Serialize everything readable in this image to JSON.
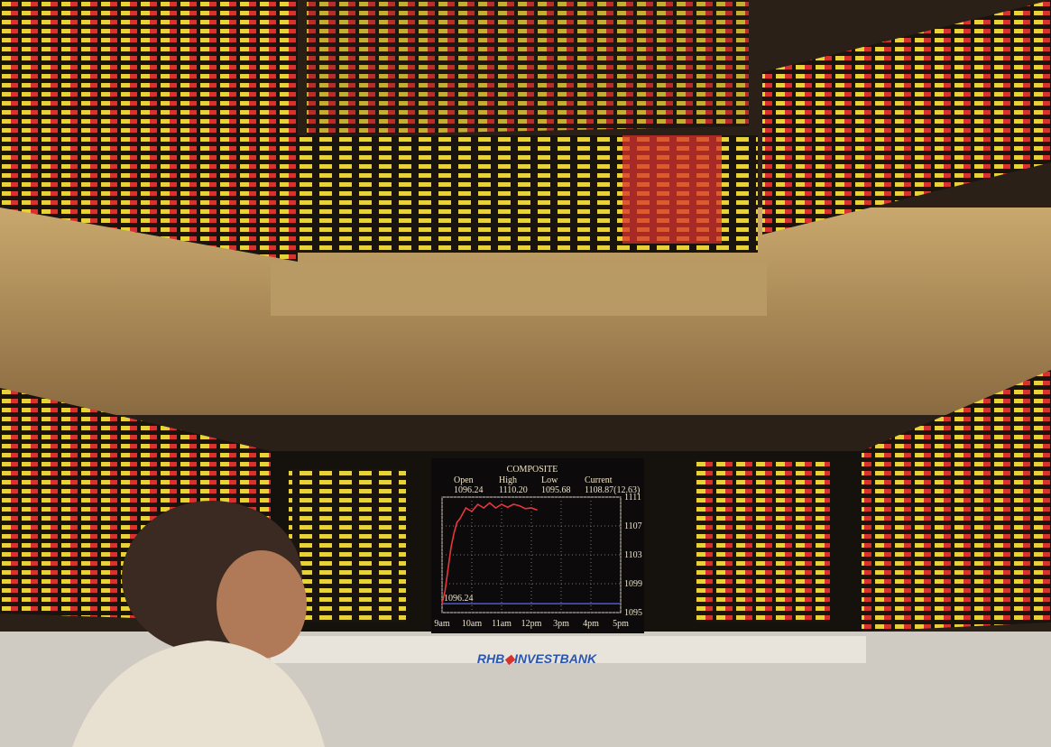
{
  "signage": {
    "brand": "RHB",
    "name": "INVESTBANK"
  },
  "chart_data": {
    "type": "line",
    "title": "COMPOSITE",
    "stats": [
      {
        "label": "Open",
        "value": "1096.24"
      },
      {
        "label": "High",
        "value": "1110.20"
      },
      {
        "label": "Low",
        "value": "1095.68"
      },
      {
        "label": "Current",
        "value": "1108.87(12.63)"
      }
    ],
    "reference": 1096.24,
    "xlim": [
      0,
      6
    ],
    "xticks": [
      {
        "value": 0,
        "label": "9am"
      },
      {
        "value": 1,
        "label": "10am"
      },
      {
        "value": 2,
        "label": "11am"
      },
      {
        "value": 3,
        "label": "12pm"
      },
      {
        "value": 4,
        "label": "3pm"
      },
      {
        "value": 5,
        "label": "4pm"
      },
      {
        "value": 6,
        "label": "5pm"
      }
    ],
    "ylim": [
      1095,
      1111
    ],
    "yticks": [
      1111,
      1107,
      1103,
      1099,
      1095
    ],
    "grid": true,
    "series": [
      {
        "color": "#e8363c",
        "x": [
          0,
          0.1,
          0.2,
          0.3,
          0.4,
          0.5,
          0.6,
          0.8,
          1.0,
          1.2,
          1.4,
          1.6,
          1.8,
          2.0,
          2.2,
          2.4,
          2.6,
          2.8,
          3.0,
          3.2
        ],
        "values": [
          1096.24,
          1098,
          1101,
          1104,
          1106,
          1107.5,
          1108,
          1109.5,
          1109,
          1110,
          1109.5,
          1110.2,
          1109.5,
          1110,
          1109.6,
          1110,
          1109.8,
          1109.4,
          1109.5,
          1109.2
        ]
      }
    ]
  }
}
